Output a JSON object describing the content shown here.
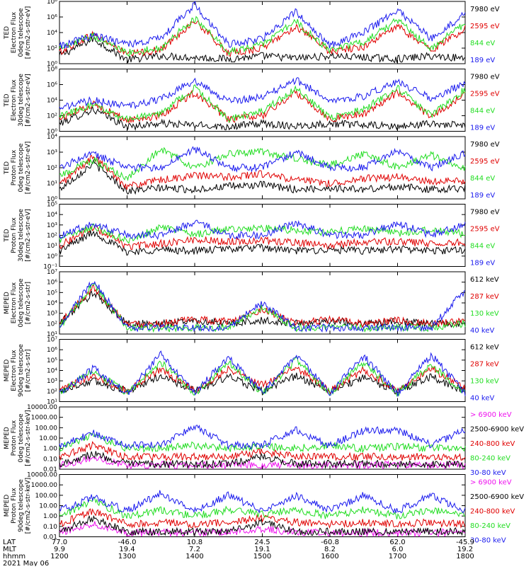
{
  "footer": {
    "row_labels": [
      "LAT",
      "MLT",
      "hhmm"
    ],
    "date": "2021 May 06",
    "ticks": [
      {
        "lat": "77.0",
        "mlt": "9.9",
        "hhmm": "1200"
      },
      {
        "lat": "-46.0",
        "mlt": "19.4",
        "hhmm": "1300"
      },
      {
        "lat": "10.8",
        "mlt": "7.2",
        "hhmm": "1400"
      },
      {
        "lat": "24.5",
        "mlt": "19.1",
        "hhmm": "1500"
      },
      {
        "lat": "-60.8",
        "mlt": "8.2",
        "hhmm": "1600"
      },
      {
        "lat": "62.0",
        "mlt": "6.0",
        "hhmm": "1700"
      },
      {
        "lat": "-45.9",
        "mlt": "19.2",
        "hhmm": "1800"
      }
    ]
  },
  "colors": {
    "black": "#000000",
    "red": "#e00000",
    "green": "#22dd22",
    "blue": "#1a1aee",
    "magenta": "#ee11ee"
  },
  "chart_data": [
    {
      "type": "line",
      "ylabel": [
        "TED",
        "Electron Flux",
        "0deg telescope",
        "[#/cm2-s-str-eV]"
      ],
      "log": true,
      "ylim_exp": [
        0,
        8
      ],
      "tick_labels": [
        "10⁰",
        "10²",
        "10⁴",
        "10⁶",
        "10⁸"
      ],
      "legend": [
        {
          "label": "7980 eV",
          "color": "#000000"
        },
        {
          "label": "2595 eV",
          "color": "#e00000"
        },
        {
          "label": "844 eV",
          "color": "#22dd22"
        },
        {
          "label": "189 eV",
          "color": "#1a1aee"
        }
      ],
      "series": [
        {
          "values": [
            1.0,
            3.2,
            0.5,
            1.0,
            0.8,
            0.6,
            1.0,
            0.7,
            1.0,
            0.8,
            0.6,
            1.0,
            0.7
          ],
          "color": "#000000"
        },
        {
          "values": [
            1.5,
            3.8,
            1.2,
            1.8,
            5.5,
            1.3,
            2.0,
            4.8,
            1.5,
            2.2,
            4.8,
            1.7,
            4.5
          ],
          "color": "#e00000"
        },
        {
          "values": [
            1.8,
            3.6,
            1.4,
            2.0,
            5.8,
            1.5,
            2.5,
            5.4,
            1.6,
            2.8,
            5.6,
            2.0,
            5.2
          ],
          "color": "#22dd22"
        },
        {
          "values": [
            2.2,
            3.7,
            2.4,
            3.3,
            7.6,
            2.5,
            3.2,
            6.7,
            2.3,
            4.0,
            6.9,
            3.2,
            6.4
          ],
          "color": "#1a1aee"
        }
      ]
    },
    {
      "type": "line",
      "ylabel": [
        "TED",
        "Electron Flux",
        "30deg telescope",
        "[#/cm2-s-str-eV]"
      ],
      "log": true,
      "ylim_exp": [
        0,
        8
      ],
      "tick_labels": [
        "10⁰",
        "10²",
        "10⁴",
        "10⁶",
        "10⁸"
      ],
      "legend": [
        {
          "label": "7980 eV",
          "color": "#000000"
        },
        {
          "label": "2595 eV",
          "color": "#e00000"
        },
        {
          "label": "844 eV",
          "color": "#22dd22"
        },
        {
          "label": "189 eV",
          "color": "#1a1aee"
        }
      ],
      "series": [
        {
          "values": [
            1.0,
            2.8,
            0.6,
            1.0,
            0.8,
            0.6,
            1.0,
            0.7,
            1.0,
            0.8,
            0.6,
            1.0,
            0.7
          ],
          "color": "#000000"
        },
        {
          "values": [
            1.6,
            3.5,
            1.4,
            2.0,
            5.0,
            1.5,
            2.0,
            5.0,
            1.6,
            2.2,
            5.0,
            1.8,
            4.8
          ],
          "color": "#e00000"
        },
        {
          "values": [
            1.9,
            3.4,
            1.5,
            2.3,
            5.6,
            1.6,
            2.6,
            5.5,
            1.7,
            2.8,
            5.5,
            2.0,
            5.4
          ],
          "color": "#22dd22"
        },
        {
          "values": [
            3.0,
            4.0,
            3.2,
            4.2,
            6.5,
            3.8,
            4.4,
            6.6,
            4.0,
            4.5,
            6.4,
            4.2,
            6.2
          ],
          "color": "#1a1aee"
        }
      ]
    },
    {
      "type": "line",
      "ylabel": [
        "TED",
        "Proton Flux",
        "0deg telescope",
        "[#/cm2-s-str-eV]"
      ],
      "log": true,
      "ylim_exp": [
        0,
        4
      ],
      "tick_labels": [
        "10⁰",
        "10¹",
        "10²",
        "10³",
        "10⁴"
      ],
      "legend": [
        {
          "label": "7980 eV",
          "color": "#000000"
        },
        {
          "label": "2595 eV",
          "color": "#e00000"
        },
        {
          "label": "844 eV",
          "color": "#22dd22"
        },
        {
          "label": "189 eV",
          "color": "#1a1aee"
        }
      ],
      "series": [
        {
          "values": [
            0.6,
            2.3,
            0.5,
            0.7,
            0.6,
            0.8,
            0.9,
            0.6,
            0.7,
            0.6,
            0.8,
            0.6,
            0.7
          ],
          "color": "#000000"
        },
        {
          "values": [
            0.9,
            2.7,
            0.8,
            1.2,
            1.5,
            1.4,
            1.6,
            1.2,
            1.0,
            1.3,
            1.4,
            1.1,
            1.2
          ],
          "color": "#e00000"
        },
        {
          "values": [
            1.5,
            2.5,
            1.3,
            3.2,
            2.0,
            2.9,
            3.0,
            2.6,
            2.2,
            2.9,
            2.0,
            2.8,
            2.0
          ],
          "color": "#22dd22"
        },
        {
          "values": [
            2.0,
            2.9,
            2.0,
            2.0,
            3.2,
            2.0,
            2.0,
            3.0,
            2.0,
            2.0,
            3.1,
            2.0,
            3.0
          ],
          "color": "#1a1aee"
        }
      ]
    },
    {
      "type": "line",
      "ylabel": [
        "TED",
        "Proton Flux",
        "30deg telescope",
        "[#/cm2-s-str-eV]"
      ],
      "log": true,
      "ylim_exp": [
        -1,
        5
      ],
      "tick_labels": [
        "10⁻¹",
        "10⁰",
        "10¹",
        "10²",
        "10³",
        "10⁴",
        "10⁵"
      ],
      "legend": [
        {
          "label": "7980 eV",
          "color": "#000000"
        },
        {
          "label": "2595 eV",
          "color": "#e00000"
        },
        {
          "label": "844 eV",
          "color": "#22dd22"
        },
        {
          "label": "189 eV",
          "color": "#1a1aee"
        }
      ],
      "series": [
        {
          "values": [
            0.5,
            2.3,
            0.4,
            0.6,
            0.5,
            0.7,
            0.8,
            0.5,
            0.6,
            0.5,
            0.7,
            0.5,
            0.6
          ],
          "color": "#000000"
        },
        {
          "values": [
            1.0,
            2.8,
            0.9,
            1.2,
            1.6,
            1.4,
            1.5,
            1.3,
            1.0,
            1.4,
            1.4,
            1.2,
            1.3
          ],
          "color": "#e00000"
        },
        {
          "values": [
            1.6,
            2.9,
            1.5,
            2.8,
            2.1,
            2.6,
            2.7,
            2.5,
            2.3,
            2.7,
            2.2,
            2.6,
            2.1
          ],
          "color": "#22dd22"
        },
        {
          "values": [
            2.0,
            3.1,
            2.0,
            2.0,
            3.3,
            2.0,
            2.0,
            3.2,
            2.0,
            2.0,
            3.2,
            2.0,
            3.1
          ],
          "color": "#1a1aee"
        }
      ]
    },
    {
      "type": "line",
      "ylabel": [
        "MEPED",
        "Electron Flux",
        "0deg telescope",
        "[#/cm2-s-str]"
      ],
      "log": true,
      "ylim_exp": [
        1,
        7
      ],
      "tick_labels": [
        "10¹",
        "10²",
        "10³",
        "10⁴",
        "10⁵",
        "10⁶",
        "10⁷"
      ],
      "legend": [
        {
          "label": "612 keV",
          "color": "#000000"
        },
        {
          "label": "287 keV",
          "color": "#e00000"
        },
        {
          "label": "130 keV",
          "color": "#22dd22"
        },
        {
          "label": "40 keV",
          "color": "#1a1aee"
        }
      ],
      "series": [
        {
          "values": [
            2.0,
            5.0,
            2.0,
            2.0,
            2.3,
            2.0,
            2.3,
            2.0,
            2.3,
            2.0,
            2.2,
            2.0,
            2.0
          ],
          "color": "#000000"
        },
        {
          "values": [
            2.0,
            5.5,
            2.0,
            2.0,
            2.4,
            2.2,
            3.4,
            2.0,
            2.4,
            2.0,
            2.3,
            2.0,
            2.2
          ],
          "color": "#e00000"
        },
        {
          "values": [
            1.6,
            5.8,
            1.6,
            1.6,
            1.6,
            1.6,
            3.6,
            1.6,
            1.6,
            1.6,
            1.6,
            1.6,
            2.0
          ],
          "color": "#22dd22"
        },
        {
          "values": [
            1.6,
            6.2,
            1.6,
            1.6,
            1.6,
            1.6,
            4.0,
            1.6,
            1.6,
            1.6,
            1.6,
            1.6,
            5.2
          ],
          "color": "#1a1aee"
        }
      ]
    },
    {
      "type": "line",
      "ylabel": [
        "MEPED",
        "Electron Flux",
        "90deg telescope",
        "[#/cm2-s-str]"
      ],
      "log": true,
      "ylim_exp": [
        1,
        7
      ],
      "tick_labels": [
        "10¹",
        "10²",
        "10³",
        "10⁴",
        "10⁵",
        "10⁶",
        "10⁷"
      ],
      "legend": [
        {
          "label": "612 keV",
          "color": "#000000"
        },
        {
          "label": "287 keV",
          "color": "#e00000"
        },
        {
          "label": "130 keV",
          "color": "#22dd22"
        },
        {
          "label": "40 keV",
          "color": "#1a1aee"
        }
      ],
      "series": [
        {
          "values": [
            2.0,
            3.0,
            2.0,
            3.5,
            2.0,
            3.4,
            2.0,
            3.5,
            2.0,
            3.3,
            2.0,
            3.4,
            2.0
          ],
          "color": "#000000"
        },
        {
          "values": [
            2.0,
            3.6,
            2.0,
            4.2,
            2.0,
            4.2,
            2.6,
            4.3,
            2.0,
            4.1,
            2.0,
            4.2,
            2.2
          ],
          "color": "#e00000"
        },
        {
          "values": [
            1.8,
            4.0,
            1.8,
            4.8,
            1.8,
            4.8,
            1.8,
            5.0,
            1.8,
            4.8,
            1.8,
            4.6,
            1.8
          ],
          "color": "#22dd22"
        },
        {
          "values": [
            1.8,
            4.2,
            1.8,
            5.6,
            1.8,
            5.3,
            1.8,
            5.5,
            1.8,
            5.4,
            1.8,
            5.5,
            1.8
          ],
          "color": "#1a1aee"
        }
      ]
    },
    {
      "type": "line",
      "ylabel": [
        "MEPED",
        "Proton Flux",
        "0deg telescope",
        "[#/cm2-s-str-keV]"
      ],
      "log": true,
      "ylim_exp": [
        -2,
        4
      ],
      "tick_labels": [
        "0.01",
        "0.10",
        "1.00",
        "10.00",
        "100.00",
        "1000.00",
        "10000.00"
      ],
      "legend": [
        {
          "label": "> 6900 keV",
          "color": "#ee11ee"
        },
        {
          "label": "2500-6900 keV",
          "color": "#000000"
        },
        {
          "label": "240-800 keV",
          "color": "#e00000"
        },
        {
          "label": "80-240 keV",
          "color": "#22dd22"
        },
        {
          "label": "30-80 keV",
          "color": "#1a1aee"
        }
      ],
      "series": [
        {
          "values": [
            -1.6,
            -0.9,
            -1.6,
            -1.6,
            -1.6,
            -1.6,
            -1.6,
            -1.6,
            -1.6,
            -1.6,
            -1.6,
            -1.6,
            -1.6
          ],
          "color": "#ee11ee"
        },
        {
          "values": [
            -1.5,
            -0.5,
            -1.5,
            -1.5,
            -1.5,
            -1.5,
            -0.8,
            -1.5,
            -1.5,
            -1.5,
            -1.5,
            -1.5,
            -1.5
          ],
          "color": "#000000"
        },
        {
          "values": [
            -0.8,
            0.3,
            -0.8,
            -0.8,
            -0.8,
            -0.8,
            -0.3,
            -0.8,
            -0.8,
            -0.8,
            -0.8,
            -0.8,
            -0.8
          ],
          "color": "#e00000"
        },
        {
          "values": [
            0.0,
            1.3,
            0.0,
            0.0,
            0.3,
            0.0,
            0.2,
            0.0,
            0.3,
            0.0,
            0.2,
            0.0,
            0.0
          ],
          "color": "#22dd22"
        },
        {
          "values": [
            0.3,
            1.5,
            0.3,
            0.3,
            2.2,
            0.3,
            0.3,
            1.8,
            0.3,
            1.7,
            1.8,
            0.3,
            1.8
          ],
          "color": "#1a1aee"
        }
      ]
    },
    {
      "type": "line",
      "ylabel": [
        "MEPED",
        "Proton Flux",
        "90deg telescope",
        "[#/cm2-s-str-keV]"
      ],
      "log": true,
      "ylim_exp": [
        -2,
        4
      ],
      "tick_labels": [
        "0.01",
        "0.10",
        "1.00",
        "10.00",
        "100.00",
        "1000.00",
        "10000.00"
      ],
      "legend": [
        {
          "label": "> 6900 keV",
          "color": "#ee11ee"
        },
        {
          "label": "2500-6900 keV",
          "color": "#000000"
        },
        {
          "label": "240-800 keV",
          "color": "#e00000"
        },
        {
          "label": "80-240 keV",
          "color": "#22dd22"
        },
        {
          "label": "30-80 keV",
          "color": "#1a1aee"
        }
      ],
      "series": [
        {
          "values": [
            -1.6,
            -0.7,
            -1.6,
            -1.6,
            -1.6,
            -1.6,
            -1.2,
            -1.6,
            -1.6,
            -1.6,
            -1.6,
            -1.6,
            -1.6
          ],
          "color": "#ee11ee"
        },
        {
          "values": [
            -1.5,
            -0.2,
            -1.5,
            -1.5,
            -1.5,
            -1.5,
            -0.6,
            -1.5,
            -1.5,
            -1.5,
            -1.5,
            -1.5,
            -1.5
          ],
          "color": "#000000"
        },
        {
          "values": [
            -0.8,
            0.5,
            -0.8,
            -0.6,
            -0.8,
            -0.6,
            -0.2,
            -0.6,
            -0.8,
            -0.6,
            -0.8,
            -0.6,
            -0.8
          ],
          "color": "#e00000"
        },
        {
          "values": [
            0.0,
            1.5,
            0.0,
            0.6,
            0.0,
            0.6,
            0.2,
            0.6,
            0.0,
            0.6,
            0.0,
            0.6,
            0.0
          ],
          "color": "#22dd22"
        },
        {
          "values": [
            0.5,
            1.8,
            0.5,
            2.2,
            0.5,
            2.0,
            0.5,
            2.0,
            0.5,
            2.0,
            0.5,
            2.0,
            0.5
          ],
          "color": "#1a1aee"
        }
      ]
    }
  ]
}
